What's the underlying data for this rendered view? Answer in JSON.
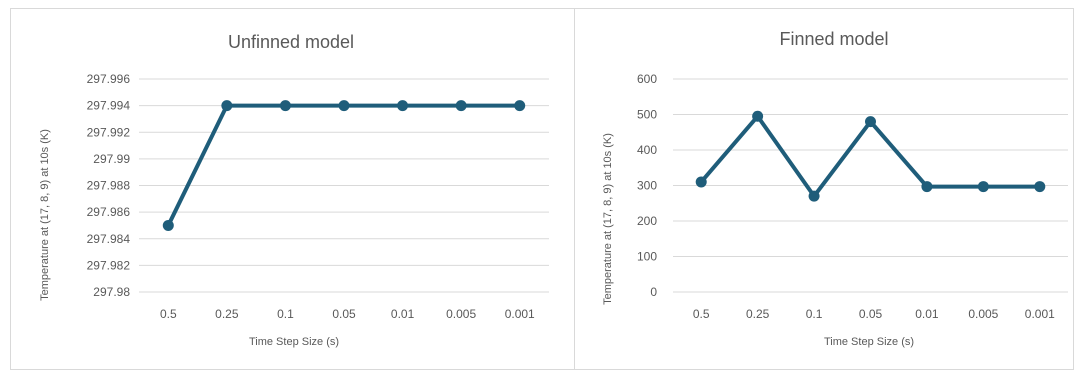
{
  "chart_data": [
    {
      "type": "line",
      "title": "Unfinned model",
      "xlabel": "Time Step Size (s)",
      "ylabel": "Temperature at (17, 8, 9) at 10s (K)",
      "categories": [
        "0.5",
        "0.25",
        "0.1",
        "0.05",
        "0.01",
        "0.005",
        "0.001"
      ],
      "series": [
        {
          "values": [
            297.985,
            297.994,
            297.994,
            297.994,
            297.994,
            297.994,
            297.994
          ]
        }
      ],
      "ylim": [
        297.98,
        297.996
      ],
      "yticks": [
        "297.98",
        "297.982",
        "297.984",
        "297.986",
        "297.988",
        "297.99",
        "297.992",
        "297.994",
        "297.996"
      ],
      "grid": true,
      "legend": "none",
      "color": "#1f5d7a"
    },
    {
      "type": "line",
      "title": "Finned model",
      "xlabel": "Time Step Size (s)",
      "ylabel": "Temperature at (17, 8, 9) at 10s (K)",
      "categories": [
        "0.5",
        "0.25",
        "0.1",
        "0.05",
        "0.01",
        "0.005",
        "0.001"
      ],
      "series": [
        {
          "values": [
            310,
            495,
            270,
            480,
            297,
            297,
            297
          ]
        }
      ],
      "ylim": [
        0,
        600
      ],
      "yticks": [
        "0",
        "100",
        "200",
        "300",
        "400",
        "500",
        "600"
      ],
      "grid": true,
      "legend": "none",
      "color": "#1f5d7a"
    }
  ]
}
